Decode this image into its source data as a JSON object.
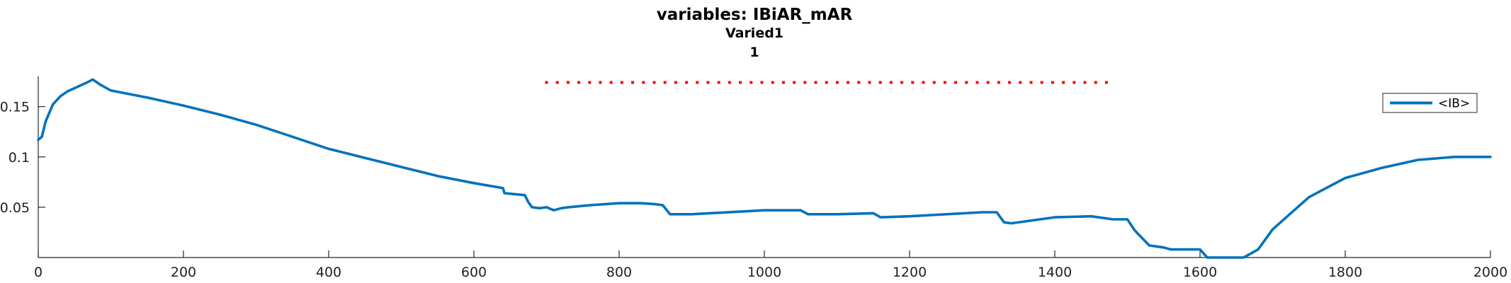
{
  "chart_data": {
    "type": "line",
    "title": "variables: IBiAR_mAR",
    "subtitle_lines": [
      "Varied1",
      "1"
    ],
    "xlabel": "",
    "ylabel": "",
    "xlim": [
      0,
      2000
    ],
    "ylim": [
      0,
      0.18
    ],
    "x_ticks": [
      0,
      200,
      400,
      600,
      800,
      1000,
      1200,
      1400,
      1600,
      1800,
      2000
    ],
    "x_tick_labels": [
      "0",
      "200",
      "400",
      "600",
      "800",
      "1000",
      "1200",
      "1400",
      "1600",
      "1800",
      "2000"
    ],
    "y_ticks": [
      0.05,
      0.1,
      0.15
    ],
    "y_tick_labels": [
      "0.05",
      "0.1",
      "0.15"
    ],
    "grid": false,
    "legend_position": "top-right",
    "series": [
      {
        "name": "<IB>",
        "color": "#0072bd",
        "style": "solid",
        "x": [
          0,
          5,
          10,
          20,
          30,
          40,
          55,
          70,
          75,
          85,
          100,
          150,
          200,
          250,
          300,
          350,
          400,
          450,
          500,
          550,
          600,
          640,
          642,
          670,
          675,
          680,
          690,
          700,
          710,
          720,
          730,
          760,
          800,
          830,
          850,
          860,
          870,
          880,
          900,
          1000,
          1050,
          1060,
          1100,
          1150,
          1160,
          1200,
          1300,
          1320,
          1330,
          1340,
          1380,
          1400,
          1450,
          1480,
          1490,
          1500,
          1510,
          1530,
          1550,
          1560,
          1600,
          1610,
          1620,
          1640,
          1660,
          1680,
          1700,
          1750,
          1800,
          1850,
          1900,
          1950,
          2000
        ],
        "y": [
          0.117,
          0.12,
          0.135,
          0.152,
          0.16,
          0.165,
          0.17,
          0.175,
          0.177,
          0.172,
          0.166,
          0.159,
          0.151,
          0.142,
          0.132,
          0.12,
          0.108,
          0.099,
          0.09,
          0.081,
          0.074,
          0.069,
          0.064,
          0.062,
          0.055,
          0.05,
          0.049,
          0.05,
          0.047,
          0.049,
          0.05,
          0.052,
          0.054,
          0.054,
          0.053,
          0.052,
          0.043,
          0.043,
          0.043,
          0.047,
          0.047,
          0.043,
          0.043,
          0.044,
          0.04,
          0.041,
          0.045,
          0.045,
          0.035,
          0.034,
          0.038,
          0.04,
          0.041,
          0.038,
          0.038,
          0.038,
          0.027,
          0.012,
          0.01,
          0.008,
          0.008,
          0.0,
          0.0,
          0.0,
          0.0,
          0.008,
          0.028,
          0.06,
          0.079,
          0.089,
          0.097,
          0.1,
          0.1
        ]
      },
      {
        "name": "",
        "color": "#ff0000",
        "style": "dotted",
        "x": [
          700,
          1485
        ],
        "y": [
          0.174,
          0.174
        ]
      }
    ]
  }
}
